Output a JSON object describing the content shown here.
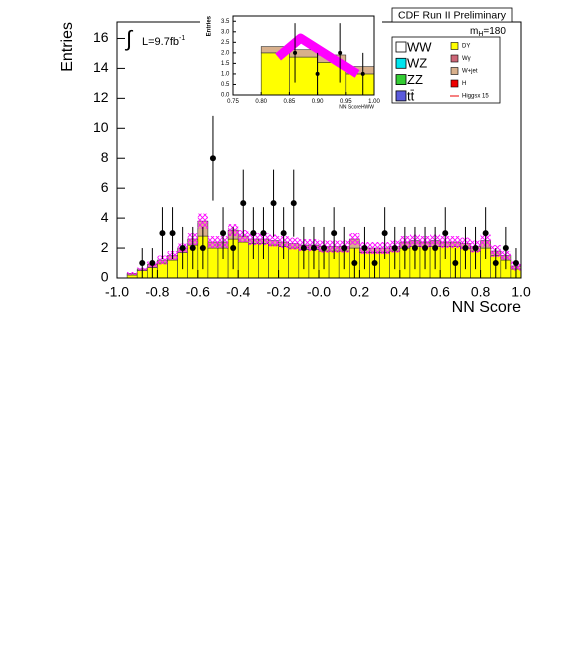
{
  "chart_data": [
    {
      "type": "histogram",
      "title": "CDF Run II Preliminary",
      "x_label": "NN Score",
      "y_label": "Entries",
      "mass_label": [
        "m",
        "H",
        "=180"
      ],
      "lumi_label": [
        "∫",
        "L=9.7fb",
        "-1"
      ],
      "xlim": [
        -1.0,
        1.0
      ],
      "ylim": [
        0,
        17.1
      ],
      "xticks": [
        {
          "value": -1.0,
          "label": "-1.0"
        },
        -0.8,
        -0.6,
        -0.4,
        -0.2,
        {
          "value": 0.0,
          "label": "-0.0"
        },
        0.2,
        0.4,
        0.6,
        0.8,
        {
          "value": 1.0,
          "label": "1.0"
        }
      ],
      "yticks": [
        0,
        2,
        4,
        6,
        8,
        10,
        12,
        14,
        16
      ],
      "bins": [
        -1.0,
        -0.95,
        -0.9,
        -0.85,
        -0.8,
        -0.75,
        -0.7,
        -0.65,
        -0.6,
        -0.55,
        -0.5,
        -0.45,
        -0.4,
        -0.35,
        -0.3,
        -0.25,
        -0.2,
        -0.15,
        -0.1,
        -0.05,
        0.0,
        0.05,
        0.1,
        0.15,
        0.2,
        0.25,
        0.3,
        0.35,
        0.4,
        0.45,
        0.5,
        0.55,
        0.6,
        0.65,
        0.7,
        0.75,
        0.8,
        0.85,
        0.9,
        0.95,
        1.0
      ],
      "series": [
        {
          "name": "WW",
          "color": "#ffffff"
        },
        {
          "name": "WZ",
          "color": "#00e5ee"
        },
        {
          "name": "ZZ",
          "color": "#33cc33"
        },
        {
          "name": "tt̄",
          "color": "#5a5adc"
        },
        {
          "name": "DY",
          "color": "#ffff00",
          "values": [
            0,
            0.2,
            0.5,
            0.7,
            1.0,
            1.2,
            1.7,
            2.2,
            2.8,
            2.0,
            2.0,
            2.6,
            2.4,
            2.3,
            2.3,
            2.2,
            2.1,
            2.0,
            1.9,
            1.9,
            1.8,
            1.8,
            1.8,
            2.0,
            1.7,
            1.7,
            1.7,
            1.8,
            2.0,
            2.1,
            2.1,
            2.1,
            2.1,
            2.1,
            2.0,
            1.8,
            2.0,
            1.5,
            1.2,
            0.6
          ]
        },
        {
          "name": "Wγ",
          "color": "#cc6677"
        },
        {
          "name": "W+jet",
          "color": "#d8b08c",
          "values": [
            0,
            0.1,
            0.1,
            0.2,
            0.2,
            0.3,
            0.3,
            0.4,
            1.0,
            0.4,
            0.4,
            0.6,
            0.4,
            0.3,
            0.3,
            0.3,
            0.3,
            0.3,
            0.3,
            0.3,
            0.3,
            0.3,
            0.3,
            0.6,
            0.3,
            0.3,
            0.3,
            0.3,
            0.4,
            0.4,
            0.3,
            0.4,
            0.3,
            0.3,
            0.3,
            0.3,
            0.5,
            0.3,
            0.3,
            0.2
          ]
        },
        {
          "name": "H",
          "color": "#ee0000"
        },
        {
          "name": "Higgsx 15",
          "color": "#ee0000",
          "marker": "line"
        }
      ],
      "uncertainty": [
        0,
        0.1,
        0.1,
        0.2,
        0.3,
        0.3,
        0.3,
        0.4,
        0.5,
        0.4,
        0.4,
        0.4,
        0.4,
        0.4,
        0.4,
        0.4,
        0.4,
        0.4,
        0.4,
        0.4,
        0.4,
        0.4,
        0.4,
        0.4,
        0.4,
        0.4,
        0.4,
        0.4,
        0.4,
        0.4,
        0.4,
        0.4,
        0.4,
        0.4,
        0.4,
        0.4,
        0.4,
        0.4,
        0.3,
        0.3
      ],
      "data": {
        "color": "#000000",
        "values": [
          null,
          null,
          1,
          1,
          3,
          3,
          2,
          2,
          2,
          8,
          3,
          2,
          5,
          3,
          3,
          5,
          3,
          5,
          2,
          2,
          2,
          3,
          2,
          1,
          2,
          1,
          3,
          2,
          2,
          2,
          2,
          2,
          3,
          1,
          2,
          2,
          3,
          1,
          2,
          1
        ],
        "errors": [
          null,
          null,
          1,
          1,
          1.73,
          1.73,
          1.41,
          1.41,
          1.41,
          2.83,
          1.73,
          1.41,
          2.24,
          1.73,
          1.73,
          2.24,
          1.73,
          2.24,
          1.41,
          1.41,
          1.41,
          1.73,
          1.41,
          1,
          1.41,
          1,
          1.73,
          1.41,
          1.41,
          1.41,
          1.41,
          1.41,
          1.73,
          1,
          1.41,
          1.41,
          1.73,
          1,
          1.41,
          1
        ]
      }
    },
    {
      "type": "histogram",
      "x_label": "NN ScoreHWW",
      "y_label": "Entries",
      "xlim": [
        0.75,
        1.0
      ],
      "ylim": [
        0,
        3.75
      ],
      "xticks": [
        0.75,
        {
          "value": 0.8,
          "label": "0.80"
        },
        0.85,
        {
          "value": 0.9,
          "label": "0.90"
        },
        0.95,
        {
          "value": 1.0,
          "label": "1.00"
        }
      ],
      "yticks": [
        {
          "value": 0,
          "label": "0.0"
        },
        0.5,
        {
          "value": 1,
          "label": "1.0"
        },
        1.5,
        {
          "value": 2,
          "label": "2.0"
        },
        2.5,
        {
          "value": 3,
          "label": "3.0"
        },
        3.5
      ],
      "bins": [
        0.75,
        0.8,
        0.85,
        0.9,
        0.95,
        1.0
      ],
      "stack": [
        {
          "color": "#ffff00",
          "values": [
            0,
            2.0,
            1.8,
            1.55,
            1.0
          ]
        },
        {
          "color": "#d8b08c",
          "values": [
            0,
            0.3,
            0.35,
            0.35,
            0.35
          ]
        }
      ],
      "signal": {
        "color": "#ff00ff",
        "x": [
          0.83,
          0.87,
          0.97
        ],
        "values": [
          1.8,
          2.7,
          1.0
        ]
      },
      "data": {
        "color": "#000000",
        "x": [
          0.86,
          0.9,
          0.94,
          0.98
        ],
        "values": [
          2,
          1,
          2,
          1
        ],
        "errors": [
          1.41,
          1,
          1.41,
          1
        ]
      }
    }
  ]
}
